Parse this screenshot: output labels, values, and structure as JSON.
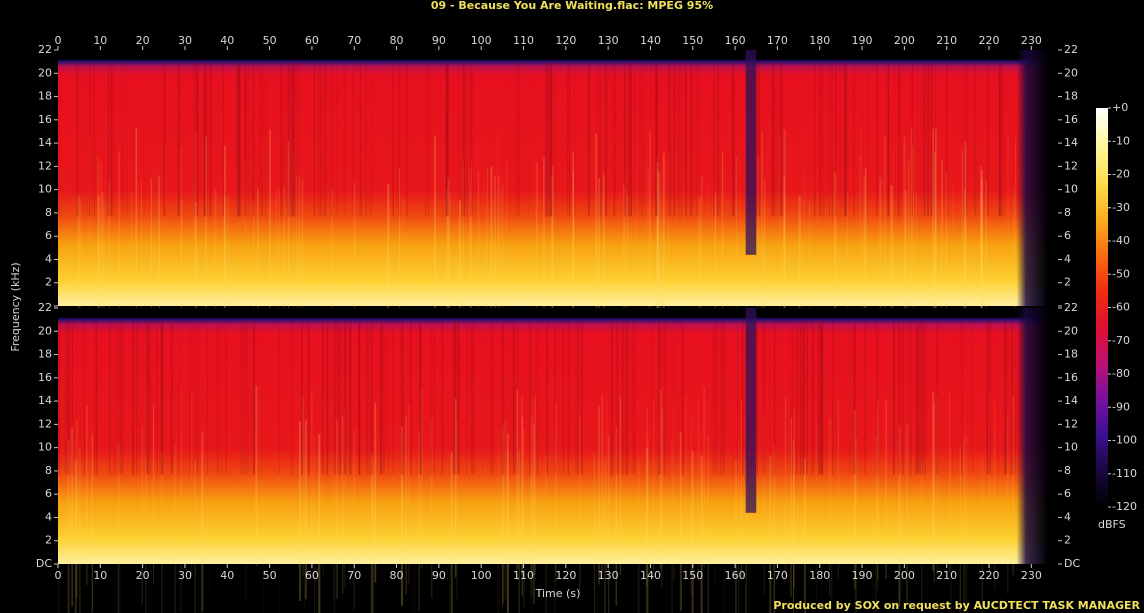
{
  "chart_data": {
    "type": "spectrogram",
    "title": "09 - Because You Are Waiting.flac: MPEG 95%",
    "xlabel": "Time (s)",
    "ylabel": "Frequency (kHz)",
    "footer": "Produced by SOX on request by AUCDTECT TASK MANAGER",
    "xlim": [
      0,
      236.3
    ],
    "xticks": [
      0,
      10,
      20,
      30,
      40,
      50,
      60,
      70,
      80,
      90,
      100,
      110,
      120,
      130,
      140,
      150,
      160,
      170,
      180,
      190,
      200,
      210,
      220,
      230
    ],
    "ylim": [
      0,
      22
    ],
    "yticks": [
      {
        "value": 0,
        "label": "DC"
      },
      2,
      4,
      6,
      8,
      10,
      12,
      14,
      16,
      18,
      20,
      22
    ],
    "colorbar": {
      "label": "dBFS",
      "lim": [
        -120,
        0
      ],
      "ticks": [
        {
          "value": 0,
          "label": "+0"
        },
        -10,
        -20,
        -30,
        -40,
        -50,
        -60,
        -70,
        -80,
        -90,
        -100,
        -110,
        -120
      ],
      "colors": [
        "#000000",
        "#1a0840",
        "#3a1090",
        "#7a10a0",
        "#c01070",
        "#e01030",
        "#f03010",
        "#f87010",
        "#fbb020",
        "#fde050",
        "#fff8a0",
        "#ffffff"
      ]
    }
  }
}
